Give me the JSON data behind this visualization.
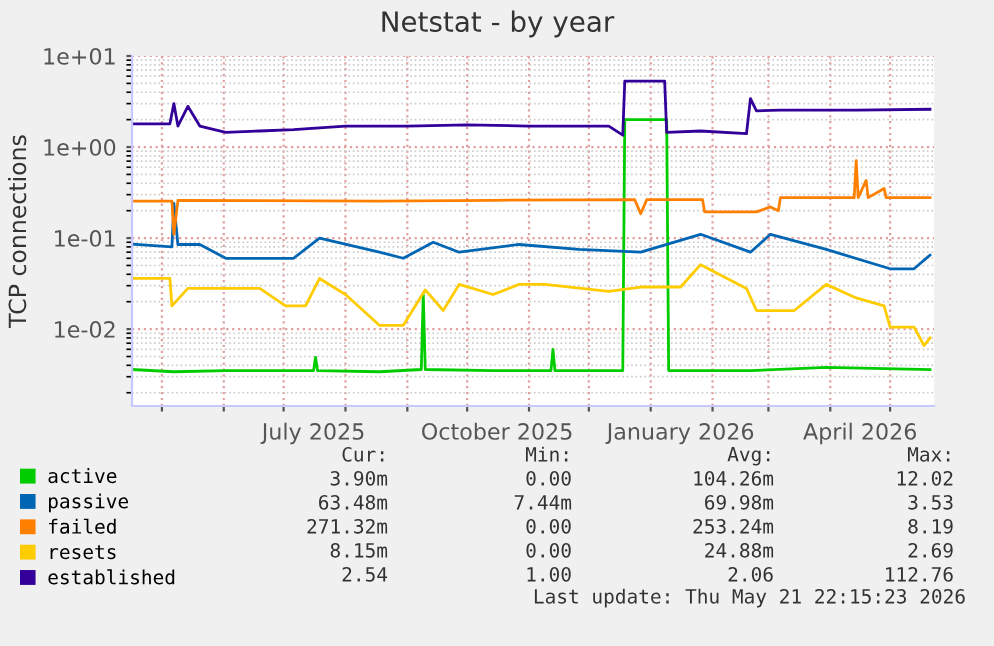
{
  "chart_data": {
    "type": "line",
    "title": "Netstat - by year",
    "ylabel": "TCP connections",
    "log": "y",
    "grid": true,
    "legend": "bottom",
    "marker": "none",
    "line_style": "solid",
    "xlim": [
      "2025-04-16",
      "2026-05-23"
    ],
    "xticks": [
      {
        "value": "2025-05-01",
        "label": null
      },
      {
        "value": "2025-06-01",
        "label": null
      },
      {
        "value": "2025-07-01",
        "label": null
      },
      {
        "value": "2025-07-16",
        "label": "July 2025"
      },
      {
        "value": "2025-08-01",
        "label": null
      },
      {
        "value": "2025-09-01",
        "label": null
      },
      {
        "value": "2025-10-01",
        "label": null
      },
      {
        "value": "2025-10-16",
        "label": "October 2025"
      },
      {
        "value": "2025-11-01",
        "label": null
      },
      {
        "value": "2025-12-01",
        "label": null
      },
      {
        "value": "2026-01-01",
        "label": null
      },
      {
        "value": "2026-01-16",
        "label": "January 2026"
      },
      {
        "value": "2026-02-01",
        "label": null
      },
      {
        "value": "2026-03-01",
        "label": null
      },
      {
        "value": "2026-04-01",
        "label": null
      },
      {
        "value": "2026-04-16",
        "label": "April 2026"
      },
      {
        "value": "2026-05-01",
        "label": null
      }
    ],
    "ylim": [
      0.00143,
      10
    ],
    "yticks": [
      {
        "value": 0.01,
        "label": "1e-02"
      },
      {
        "value": 0.1,
        "label": "1e-01"
      },
      {
        "value": 1,
        "label": "1e+00"
      },
      {
        "value": 10,
        "label": "1e+01"
      }
    ],
    "series": [
      {
        "name": "active",
        "color": "#00cc00",
        "x": [
          "2025-04-16",
          "2025-05-07",
          "2025-06-02",
          "2025-07-16",
          "2025-07-17",
          "2025-07-18",
          "2025-08-18",
          "2025-09-08",
          "2025-09-09",
          "2025-09-10",
          "2025-10-14",
          "2025-11-12",
          "2025-11-13",
          "2025-11-14",
          "2025-12-18",
          "2025-12-19",
          "2026-01-09",
          "2026-01-10",
          "2026-02-20",
          "2026-03-30",
          "2026-05-21"
        ],
        "values": [
          0.0036,
          0.0034,
          0.0035,
          0.0035,
          0.0049,
          0.0035,
          0.0034,
          0.0036,
          0.024,
          0.0036,
          0.0035,
          0.0035,
          0.006,
          0.0035,
          0.0035,
          2.0,
          2.0,
          0.0035,
          0.0035,
          0.0038,
          0.0036
        ]
      },
      {
        "name": "passive",
        "color": "#0066b3",
        "x": [
          "2025-04-16",
          "2025-05-06",
          "2025-05-07",
          "2025-05-09",
          "2025-05-20",
          "2025-06-02",
          "2025-06-19",
          "2025-07-06",
          "2025-07-19",
          "2025-08-18",
          "2025-08-30",
          "2025-09-14",
          "2025-09-27",
          "2025-10-27",
          "2025-11-26",
          "2025-12-27",
          "2026-01-26",
          "2026-02-20",
          "2026-03-02",
          "2026-03-30",
          "2026-05-01",
          "2026-05-13",
          "2026-05-21"
        ],
        "values": [
          0.086,
          0.08,
          0.24,
          0.085,
          0.085,
          0.06,
          0.06,
          0.06,
          0.1,
          0.07,
          0.06,
          0.09,
          0.07,
          0.085,
          0.075,
          0.07,
          0.11,
          0.07,
          0.11,
          0.075,
          0.046,
          0.046,
          0.065
        ]
      },
      {
        "name": "failed",
        "color": "#ff8000",
        "x": [
          "2025-04-16",
          "2025-05-06",
          "2025-05-07",
          "2025-05-09",
          "2025-08-18",
          "2025-10-14",
          "2025-12-24",
          "2025-12-27",
          "2025-12-30",
          "2026-01-27",
          "2026-01-28",
          "2026-02-23",
          "2026-03-02",
          "2026-03-06",
          "2026-03-07",
          "2026-04-13",
          "2026-04-14",
          "2026-04-15",
          "2026-04-19",
          "2026-04-20",
          "2026-04-28",
          "2026-04-29",
          "2026-05-21"
        ],
        "values": [
          0.255,
          0.255,
          0.11,
          0.26,
          0.255,
          0.26,
          0.264,
          0.185,
          0.264,
          0.264,
          0.194,
          0.194,
          0.22,
          0.2,
          0.278,
          0.278,
          0.71,
          0.278,
          0.43,
          0.278,
          0.35,
          0.278,
          0.278
        ]
      },
      {
        "name": "resets",
        "color": "#ffcc00",
        "x": [
          "2025-04-16",
          "2025-05-05",
          "2025-05-06",
          "2025-05-14",
          "2025-06-19",
          "2025-07-02",
          "2025-07-12",
          "2025-07-19",
          "2025-08-01",
          "2025-08-18",
          "2025-08-30",
          "2025-09-10",
          "2025-09-19",
          "2025-09-27",
          "2025-10-14",
          "2025-10-27",
          "2025-11-09",
          "2025-12-11",
          "2025-12-27",
          "2026-01-16",
          "2026-01-26",
          "2026-02-18",
          "2026-02-23",
          "2026-03-14",
          "2026-03-30",
          "2026-04-14",
          "2026-04-28",
          "2026-05-01",
          "2026-05-13",
          "2026-05-18",
          "2026-05-21"
        ],
        "values": [
          0.036,
          0.036,
          0.018,
          0.028,
          0.028,
          0.018,
          0.018,
          0.036,
          0.024,
          0.011,
          0.011,
          0.027,
          0.016,
          0.031,
          0.024,
          0.031,
          0.031,
          0.026,
          0.029,
          0.029,
          0.051,
          0.028,
          0.016,
          0.016,
          0.031,
          0.022,
          0.018,
          0.0105,
          0.0105,
          0.0066,
          0.008
        ]
      },
      {
        "name": "established",
        "color": "#330099",
        "x": [
          "2025-04-16",
          "2025-05-05",
          "2025-05-07",
          "2025-05-09",
          "2025-05-14",
          "2025-05-20",
          "2025-06-02",
          "2025-06-19",
          "2025-07-06",
          "2025-08-01",
          "2025-09-01",
          "2025-10-01",
          "2025-11-01",
          "2025-12-11",
          "2025-12-18",
          "2025-12-19",
          "2026-01-08",
          "2026-01-09",
          "2026-01-26",
          "2026-02-18",
          "2026-02-20",
          "2026-02-23",
          "2026-03-07",
          "2026-04-14",
          "2026-05-21"
        ],
        "values": [
          1.8,
          1.8,
          3.0,
          1.7,
          2.8,
          1.7,
          1.45,
          1.5,
          1.55,
          1.7,
          1.7,
          1.75,
          1.7,
          1.7,
          1.35,
          5.3,
          5.3,
          1.45,
          1.5,
          1.4,
          3.4,
          2.5,
          2.55,
          2.55,
          2.6
        ]
      }
    ],
    "annotations": [
      "Cur:",
      "Min:",
      "Avg:",
      "Max:",
      "3.90m",
      "0.00",
      "104.26m",
      "12.02",
      "63.48m",
      "7.44m",
      "69.98m",
      "3.53",
      "271.32m",
      "0.00",
      "253.24m",
      "8.19",
      "8.15m",
      "0.00",
      "24.88m",
      "2.69",
      "2.54",
      "1.00",
      "2.06",
      "112.76",
      "Last update: Thu May 21 22:15:23 2026"
    ]
  }
}
